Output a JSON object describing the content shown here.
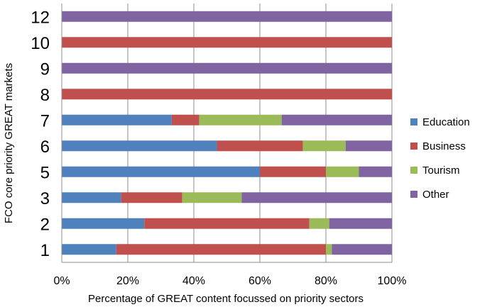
{
  "chart_data": {
    "type": "bar",
    "orientation": "horizontal",
    "stacked": "percent",
    "xlabel": "Percentage of GREAT content focussed on priority sectors",
    "ylabel": "FCO core priority GREAT markets",
    "xlim": [
      0,
      100
    ],
    "xticks": [
      "0%",
      "20%",
      "40%",
      "60%",
      "80%",
      "100%"
    ],
    "grid": "vertical",
    "legend_position": "right",
    "categories": [
      "12",
      "10",
      "9",
      "8",
      "7",
      "6",
      "5",
      "3",
      "2",
      "1"
    ],
    "series": [
      {
        "name": "Education",
        "color": "#4F81BD",
        "values": [
          0,
          0,
          0,
          0,
          33.3,
          47,
          60,
          18,
          25,
          16.5
        ]
      },
      {
        "name": "Business",
        "color": "#C0504D",
        "values": [
          0,
          100,
          0,
          100,
          8.3,
          26,
          20,
          18.5,
          50,
          63.5
        ]
      },
      {
        "name": "Tourism",
        "color": "#9BBB59",
        "values": [
          0,
          0,
          0,
          0,
          25,
          13,
          10,
          18,
          6,
          1.8
        ]
      },
      {
        "name": "Other",
        "color": "#8064A2",
        "values": [
          100,
          0,
          100,
          0,
          33.4,
          14,
          10,
          45.5,
          19,
          18.2
        ]
      }
    ]
  }
}
